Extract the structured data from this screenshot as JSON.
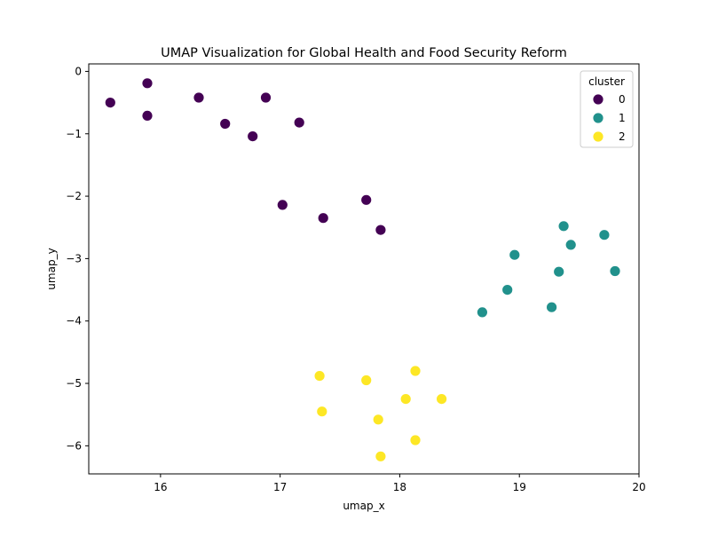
{
  "chart_data": {
    "type": "scatter",
    "title": "UMAP Visualization for Global Health and Food Security Reform",
    "xlabel": "umap_x",
    "ylabel": "umap_y",
    "xlim": [
      15.4,
      20.0
    ],
    "ylim": [
      -6.45,
      0.12
    ],
    "xticks": [
      16,
      17,
      18,
      19,
      20
    ],
    "yticks": [
      0,
      -1,
      -2,
      -3,
      -4,
      -5,
      -6
    ],
    "grid": false,
    "legend": {
      "title": "cluster",
      "placement": "top-right"
    },
    "series": [
      {
        "name": "0",
        "color": "#440154",
        "x": [
          15.58,
          15.89,
          15.89,
          16.32,
          16.54,
          16.77,
          16.88,
          17.16,
          17.02,
          17.36,
          17.72,
          17.84
        ],
        "y": [
          -0.5,
          -0.19,
          -0.71,
          -0.42,
          -0.84,
          -1.04,
          -0.42,
          -0.82,
          -2.14,
          -2.35,
          -2.06,
          -2.54
        ]
      },
      {
        "name": "1",
        "color": "#21918c",
        "x": [
          19.37,
          19.71,
          19.43,
          18.96,
          19.33,
          19.8,
          18.9,
          19.27,
          18.69
        ],
        "y": [
          -2.48,
          -2.62,
          -2.78,
          -2.94,
          -3.21,
          -3.2,
          -3.5,
          -3.78,
          -3.86
        ]
      },
      {
        "name": "2",
        "color": "#fde725",
        "x": [
          17.33,
          17.72,
          18.13,
          17.35,
          18.05,
          18.35,
          17.82,
          18.13,
          17.84
        ],
        "y": [
          -4.88,
          -4.95,
          -4.8,
          -5.45,
          -5.25,
          -5.25,
          -5.58,
          -5.91,
          -6.17
        ]
      }
    ]
  }
}
